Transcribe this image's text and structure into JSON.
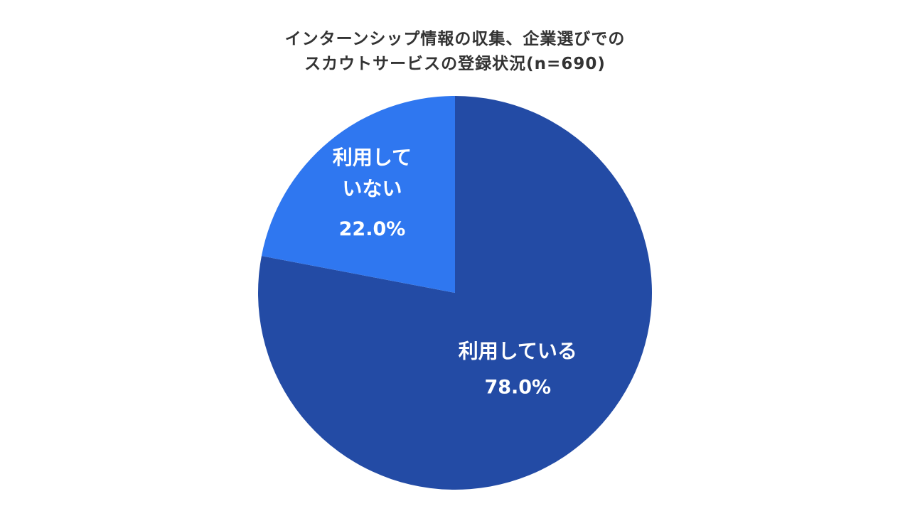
{
  "chart_data": {
    "type": "pie",
    "title_lines": [
      "インターンシップ情報の収集、企業選びでの",
      "スカウトサービスの登録状況(n=690)"
    ],
    "slices": [
      {
        "label_lines": [
          "利用している"
        ],
        "value": 78.0,
        "value_label": "78.0%",
        "color": "#234BA5"
      },
      {
        "label_lines": [
          "利用して",
          "いない"
        ],
        "value": 22.0,
        "value_label": "22.0%",
        "color": "#2F77F0"
      }
    ],
    "start": "top, clockwise",
    "legend": "none"
  }
}
